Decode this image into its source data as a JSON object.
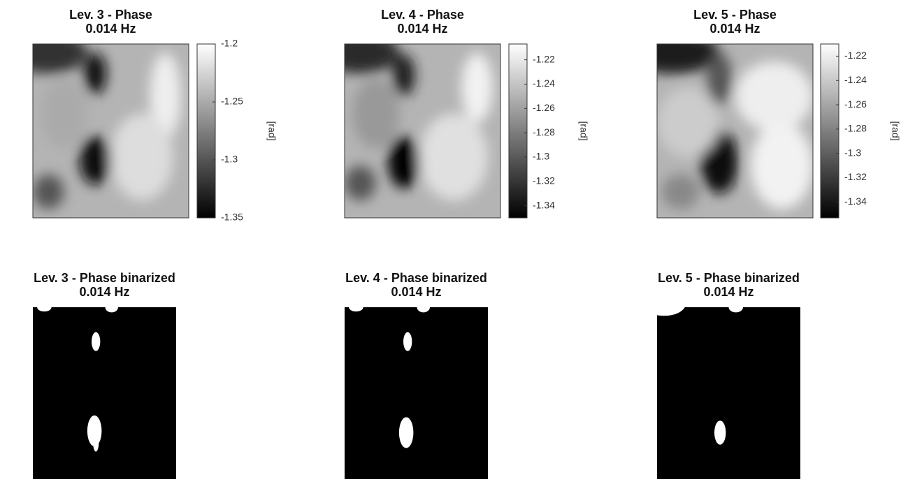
{
  "chart_data": [
    {
      "type": "heatmap",
      "title": "Lev. 3 - Phase",
      "subtitle": "0.014 Hz",
      "colorbar_label": "[rad]",
      "clim": [
        -1.35,
        -1.2
      ],
      "cticks": [
        -1.35,
        -1.3,
        -1.25,
        -1.2
      ]
    },
    {
      "type": "heatmap",
      "title": "Lev. 4 - Phase",
      "subtitle": "0.014 Hz",
      "colorbar_label": "[rad]",
      "clim": [
        -1.35,
        -1.207
      ],
      "cticks": [
        -1.34,
        -1.32,
        -1.3,
        -1.28,
        -1.26,
        -1.24,
        -1.22
      ]
    },
    {
      "type": "heatmap",
      "title": "Lev. 5 - Phase",
      "subtitle": "0.014 Hz",
      "colorbar_label": "[rad]",
      "clim": [
        -1.353,
        -1.21
      ],
      "cticks": [
        -1.34,
        -1.32,
        -1.3,
        -1.28,
        -1.26,
        -1.24,
        -1.22
      ]
    },
    {
      "type": "image",
      "title": "Lev. 3 - Phase binarized",
      "subtitle": "0.014 Hz"
    },
    {
      "type": "image",
      "title": "Lev. 4 - Phase binarized",
      "subtitle": "0.014 Hz"
    },
    {
      "type": "image",
      "title": "Lev. 5 - Phase binarized",
      "subtitle": "0.014 Hz"
    }
  ]
}
